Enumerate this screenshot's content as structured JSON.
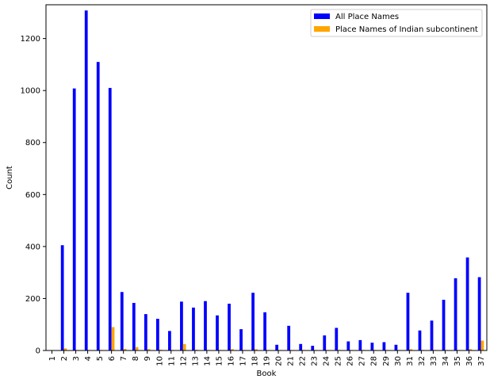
{
  "chart_data": {
    "type": "bar",
    "xlabel": "Book",
    "ylabel": "Count",
    "ylim": [
      0,
      1330
    ],
    "yticks": [
      0,
      200,
      400,
      600,
      800,
      1000,
      1200
    ],
    "categories": [
      "1",
      "2",
      "3",
      "4",
      "5",
      "6",
      "7",
      "8",
      "9",
      "10",
      "11",
      "12",
      "13",
      "14",
      "15",
      "16",
      "17",
      "18",
      "19",
      "20",
      "21",
      "22",
      "23",
      "24",
      "25",
      "26",
      "27",
      "28",
      "29",
      "30",
      "31",
      "32",
      "33",
      "34",
      "35",
      "36",
      "37"
    ],
    "series": [
      {
        "name": "All Place Names",
        "color": "#0000ff",
        "values": [
          0,
          405,
          1008,
          1308,
          1110,
          1010,
          225,
          183,
          140,
          122,
          75,
          188,
          165,
          190,
          135,
          180,
          82,
          222,
          147,
          22,
          95,
          25,
          18,
          58,
          87,
          35,
          40,
          30,
          32,
          22,
          222,
          77,
          115,
          195,
          278,
          358,
          282
        ]
      },
      {
        "name": "Place Names of Indian subcontinent",
        "color": "#ffa500",
        "values": [
          0,
          8,
          2,
          2,
          2,
          90,
          6,
          13,
          5,
          3,
          2,
          25,
          3,
          2,
          2,
          5,
          2,
          5,
          2,
          2,
          2,
          2,
          2,
          2,
          2,
          2,
          2,
          2,
          2,
          2,
          5,
          2,
          2,
          2,
          2,
          5,
          38
        ]
      }
    ],
    "legend": "top-right",
    "grid": false
  }
}
